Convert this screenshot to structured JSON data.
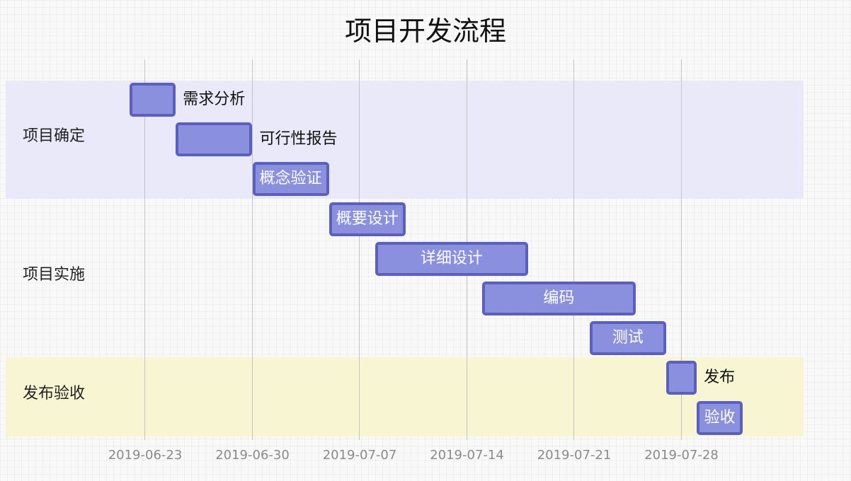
{
  "title": "项目开发流程",
  "chart_data": {
    "type": "gantt",
    "title": "项目开发流程",
    "date_format": "YYYY-MM-DD",
    "x_ticks": [
      "2019-06-23",
      "2019-06-30",
      "2019-07-07",
      "2019-07-14",
      "2019-07-21",
      "2019-07-28"
    ],
    "x_range": [
      "2019-06-20",
      "2019-08-05"
    ],
    "sections": [
      {
        "name": "项目确定",
        "color": "#eae9f9"
      },
      {
        "name": "项目实施",
        "color": "transparent"
      },
      {
        "name": "发布验收",
        "color": "#f8f6d2"
      }
    ],
    "tasks": [
      {
        "name": "需求分析",
        "section": "项目确定",
        "start": "2019-06-22",
        "end": "2019-06-25"
      },
      {
        "name": "可行性报告",
        "section": "项目确定",
        "start": "2019-06-25",
        "end": "2019-06-30"
      },
      {
        "name": "概念验证",
        "section": "项目确定",
        "start": "2019-06-30",
        "end": "2019-07-05"
      },
      {
        "name": "概要设计",
        "section": "项目实施",
        "start": "2019-07-05",
        "end": "2019-07-10"
      },
      {
        "name": "详细设计",
        "section": "项目实施",
        "start": "2019-07-08",
        "end": "2019-07-18"
      },
      {
        "name": "编码",
        "section": "项目实施",
        "start": "2019-07-15",
        "end": "2019-07-25"
      },
      {
        "name": "测试",
        "section": "项目实施",
        "start": "2019-07-22",
        "end": "2019-07-27"
      },
      {
        "name": "发布",
        "section": "发布验收",
        "start": "2019-07-27",
        "end": "2019-07-29"
      },
      {
        "name": "验收",
        "section": "发布验收",
        "start": "2019-07-29",
        "end": "2019-08-01"
      }
    ]
  }
}
